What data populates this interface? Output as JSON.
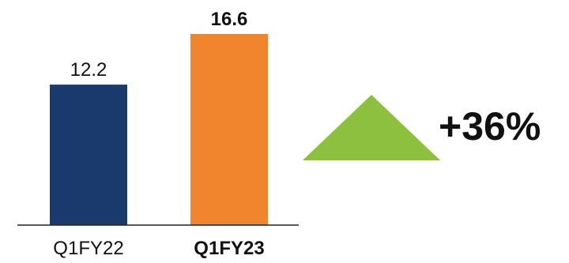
{
  "chart_data": {
    "type": "bar",
    "categories": [
      "Q1FY22",
      "Q1FY23"
    ],
    "values": [
      12.2,
      16.6
    ],
    "value_labels": [
      "12.2",
      "16.6"
    ],
    "bar_colors": [
      "#1a3a6e",
      "#f0852d"
    ],
    "highlighted_category": "Q1FY23",
    "ylim": [
      0,
      16.6
    ],
    "grid": false,
    "title": "",
    "xlabel": "",
    "ylabel": ""
  },
  "growth_indicator": {
    "text": "+36%",
    "icon": "up-triangle-icon",
    "color": "#8dc03f"
  }
}
